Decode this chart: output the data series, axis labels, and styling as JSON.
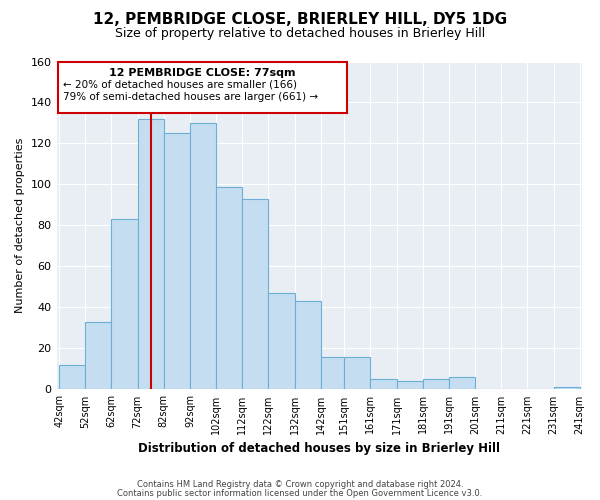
{
  "title": "12, PEMBRIDGE CLOSE, BRIERLEY HILL, DY5 1DG",
  "subtitle": "Size of property relative to detached houses in Brierley Hill",
  "xlabel": "Distribution of detached houses by size in Brierley Hill",
  "ylabel": "Number of detached properties",
  "footnote1": "Contains HM Land Registry data © Crown copyright and database right 2024.",
  "footnote2": "Contains public sector information licensed under the Open Government Licence v3.0.",
  "bin_edges": [
    42,
    52,
    62,
    72,
    82,
    92,
    102,
    112,
    122,
    132,
    142,
    151,
    161,
    171,
    181,
    191,
    201,
    211,
    221,
    231,
    241
  ],
  "bin_labels": [
    "42sqm",
    "52sqm",
    "62sqm",
    "72sqm",
    "82sqm",
    "92sqm",
    "102sqm",
    "112sqm",
    "122sqm",
    "132sqm",
    "142sqm",
    "151sqm",
    "161sqm",
    "171sqm",
    "181sqm",
    "191sqm",
    "201sqm",
    "211sqm",
    "221sqm",
    "231sqm",
    "241sqm"
  ],
  "counts": [
    12,
    33,
    83,
    132,
    125,
    130,
    99,
    93,
    47,
    43,
    16,
    16,
    5,
    4,
    5,
    6,
    0,
    0,
    0,
    1
  ],
  "bar_color": "#c5ddf0",
  "bar_edge_color": "#6baed6",
  "vline_x": 77,
  "vline_color": "#cc0000",
  "box_color": "#cc0000",
  "annotation_title": "12 PEMBRIDGE CLOSE: 77sqm",
  "annotation_line1": "← 20% of detached houses are smaller (166)",
  "annotation_line2": "79% of semi-detached houses are larger (661) →",
  "ylim": [
    0,
    160
  ],
  "yticks": [
    0,
    20,
    40,
    60,
    80,
    100,
    120,
    140,
    160
  ],
  "bg_color": "#e8eef4",
  "grid_color": "white"
}
